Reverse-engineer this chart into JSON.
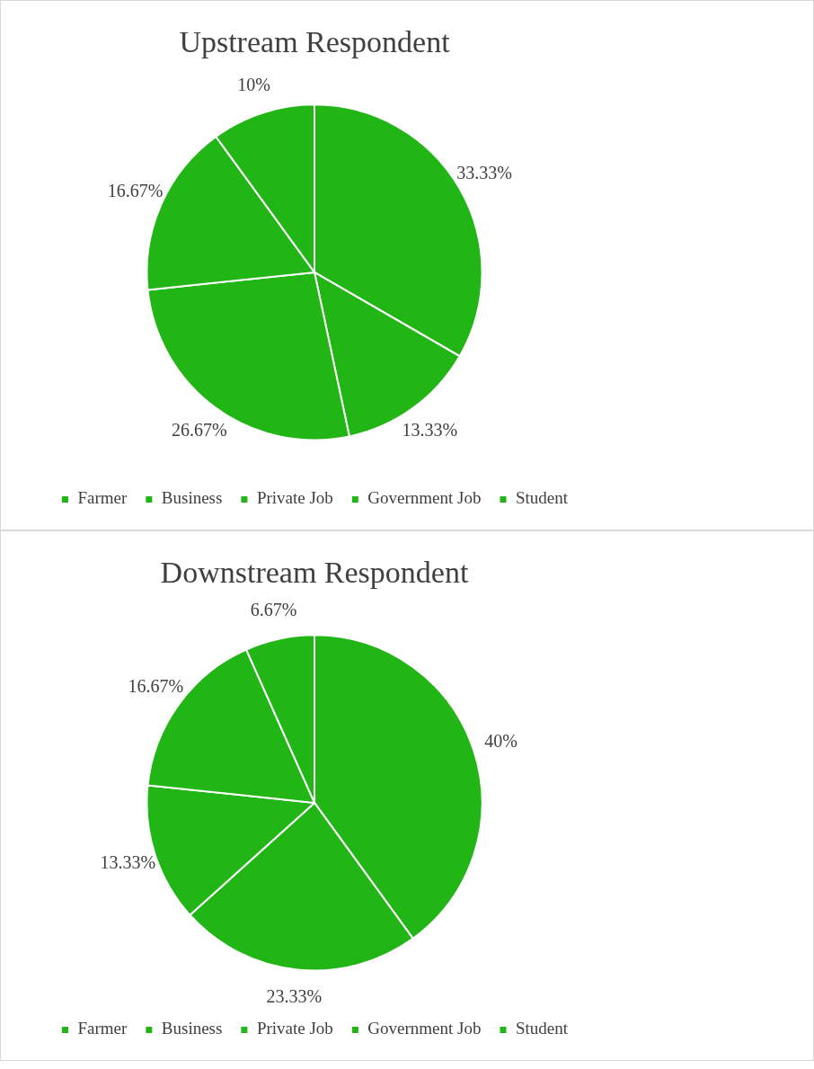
{
  "chart_data": [
    {
      "type": "pie",
      "title": "Upstream Respondent",
      "categories": [
        "Farmer",
        "Business",
        "Private Job",
        "Government Job",
        "Student"
      ],
      "values": [
        33.33,
        13.33,
        26.67,
        16.67,
        10
      ],
      "value_labels": [
        "33.33%",
        "13.33%",
        "26.67%",
        "16.67%",
        "10%"
      ],
      "colors": [
        "#21b515",
        "#21b515",
        "#21b515",
        "#21b515",
        "#21b515"
      ],
      "legend": "bottom"
    },
    {
      "type": "pie",
      "title": "Downstream Respondent",
      "categories": [
        "Farmer",
        "Business",
        "Private Job",
        "Government Job",
        "Student"
      ],
      "values": [
        40,
        23.33,
        13.33,
        16.67,
        6.67
      ],
      "value_labels": [
        "40%",
        "23.33%",
        "13.33%",
        "16.67%",
        "6.67%"
      ],
      "colors": [
        "#21b515",
        "#21b515",
        "#21b515",
        "#21b515",
        "#21b515"
      ],
      "legend": "bottom"
    }
  ]
}
